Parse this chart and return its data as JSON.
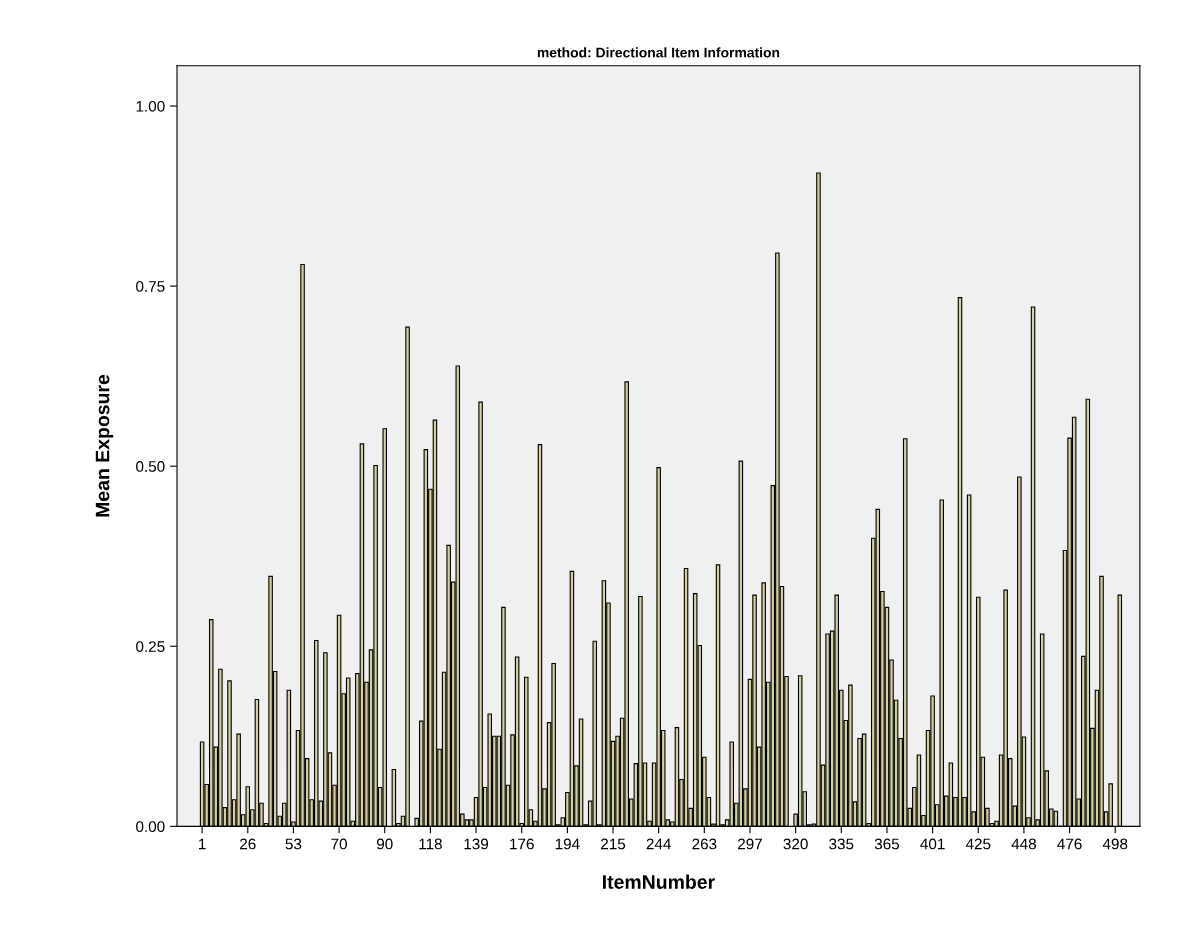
{
  "chart_data": {
    "type": "bar",
    "title": "method: Directional Item Information",
    "xlabel": "ItemNumber",
    "ylabel": "Mean Exposure",
    "categories": [
      "1",
      null,
      null,
      null,
      null,
      null,
      null,
      null,
      null,
      null,
      "26",
      null,
      null,
      null,
      null,
      null,
      null,
      null,
      null,
      null,
      "53",
      null,
      null,
      null,
      null,
      null,
      null,
      null,
      null,
      null,
      "70",
      null,
      null,
      null,
      null,
      null,
      null,
      null,
      null,
      null,
      "90",
      null,
      null,
      null,
      null,
      null,
      null,
      null,
      null,
      null,
      "118",
      null,
      null,
      null,
      null,
      null,
      null,
      null,
      null,
      null,
      "139",
      null,
      null,
      null,
      null,
      null,
      null,
      null,
      null,
      null,
      "176",
      null,
      null,
      null,
      null,
      null,
      null,
      null,
      null,
      null,
      "194",
      null,
      null,
      null,
      null,
      null,
      null,
      null,
      null,
      null,
      "215",
      null,
      null,
      null,
      null,
      null,
      null,
      null,
      null,
      null,
      "244",
      null,
      null,
      null,
      null,
      null,
      null,
      null,
      null,
      null,
      "263",
      null,
      null,
      null,
      null,
      null,
      null,
      null,
      null,
      null,
      "297",
      null,
      null,
      null,
      null,
      null,
      null,
      null,
      null,
      null,
      "320",
      null,
      null,
      null,
      null,
      null,
      null,
      null,
      null,
      null,
      "335",
      null,
      null,
      null,
      null,
      null,
      null,
      null,
      null,
      null,
      "365",
      null,
      null,
      null,
      null,
      null,
      null,
      null,
      null,
      null,
      "401",
      null,
      null,
      null,
      null,
      null,
      null,
      null,
      null,
      null,
      "425",
      null,
      null,
      null,
      null,
      null,
      null,
      null,
      null,
      null,
      "448",
      null,
      null,
      null,
      null,
      null,
      null,
      null,
      null,
      null,
      "476",
      null,
      null,
      null,
      null,
      null,
      null,
      null,
      null,
      null,
      "498",
      null
    ],
    "values": [
      0.117,
      0.058,
      0.287,
      0.11,
      0.218,
      0.026,
      0.202,
      0.037,
      0.128,
      0.016,
      0.055,
      0.023,
      0.176,
      0.032,
      0.004,
      0.347,
      0.215,
      0.014,
      0.032,
      0.189,
      0.006,
      0.133,
      0.78,
      0.094,
      0.037,
      0.258,
      0.035,
      0.241,
      0.102,
      0.057,
      0.293,
      0.184,
      0.206,
      0.007,
      0.212,
      0.531,
      0.2,
      0.245,
      0.501,
      0.054,
      0.552,
      null,
      0.079,
      0.004,
      0.014,
      0.693,
      null,
      0.011,
      0.146,
      0.523,
      0.468,
      0.564,
      0.107,
      0.214,
      0.39,
      0.339,
      0.639,
      0.017,
      0.009,
      0.009,
      0.04,
      0.589,
      0.054,
      0.156,
      0.125,
      0.125,
      0.304,
      0.057,
      0.127,
      0.235,
      0.004,
      0.207,
      0.023,
      0.007,
      0.53,
      0.052,
      0.144,
      0.226,
      0.002,
      0.012,
      0.047,
      0.354,
      0.084,
      0.149,
      0.002,
      0.035,
      0.257,
      0.002,
      0.341,
      0.31,
      0.118,
      0.125,
      0.15,
      0.617,
      0.038,
      0.087,
      0.319,
      0.088,
      0.007,
      0.088,
      0.498,
      0.133,
      0.009,
      0.006,
      0.137,
      0.065,
      0.358,
      0.025,
      0.323,
      0.251,
      0.096,
      0.04,
      0.003,
      0.363,
      0.002,
      0.009,
      0.117,
      0.032,
      0.507,
      0.052,
      0.204,
      0.321,
      0.11,
      0.338,
      0.2,
      0.473,
      0.796,
      0.333,
      0.208,
      null,
      0.017,
      0.209,
      0.048,
      0.002,
      0.003,
      0.907,
      0.085,
      0.267,
      0.271,
      0.321,
      0.189,
      0.147,
      0.196,
      0.034,
      0.122,
      0.128,
      0.004,
      0.4,
      0.44,
      0.326,
      0.304,
      0.231,
      0.175,
      0.122,
      0.538,
      0.025,
      0.054,
      0.099,
      0.015,
      0.133,
      0.181,
      0.03,
      0.453,
      0.042,
      0.088,
      0.04,
      0.734,
      0.04,
      0.46,
      0.02,
      0.318,
      0.096,
      0.025,
      0.004,
      0.007,
      0.099,
      0.328,
      0.094,
      0.028,
      0.485,
      0.124,
      0.012,
      0.721,
      0.009,
      0.267,
      0.077,
      0.024,
      0.021,
      0,
      0.383,
      0.539,
      0.568,
      0.038,
      0.236,
      0.593,
      0.136,
      0.189,
      0.347,
      0.02,
      0.059,
      null,
      0.321
    ],
    "color": "#d6cfa0",
    "ylim": [
      0,
      1.056
    ],
    "yticks": [
      {
        "value": 0,
        "label": "0.00"
      },
      {
        "value": 0.25,
        "label": "0.25"
      },
      {
        "value": 0.5,
        "label": "0.50"
      },
      {
        "value": 0.75,
        "label": "0.75"
      },
      {
        "value": 1,
        "label": "1.00"
      }
    ],
    "grid": false
  }
}
